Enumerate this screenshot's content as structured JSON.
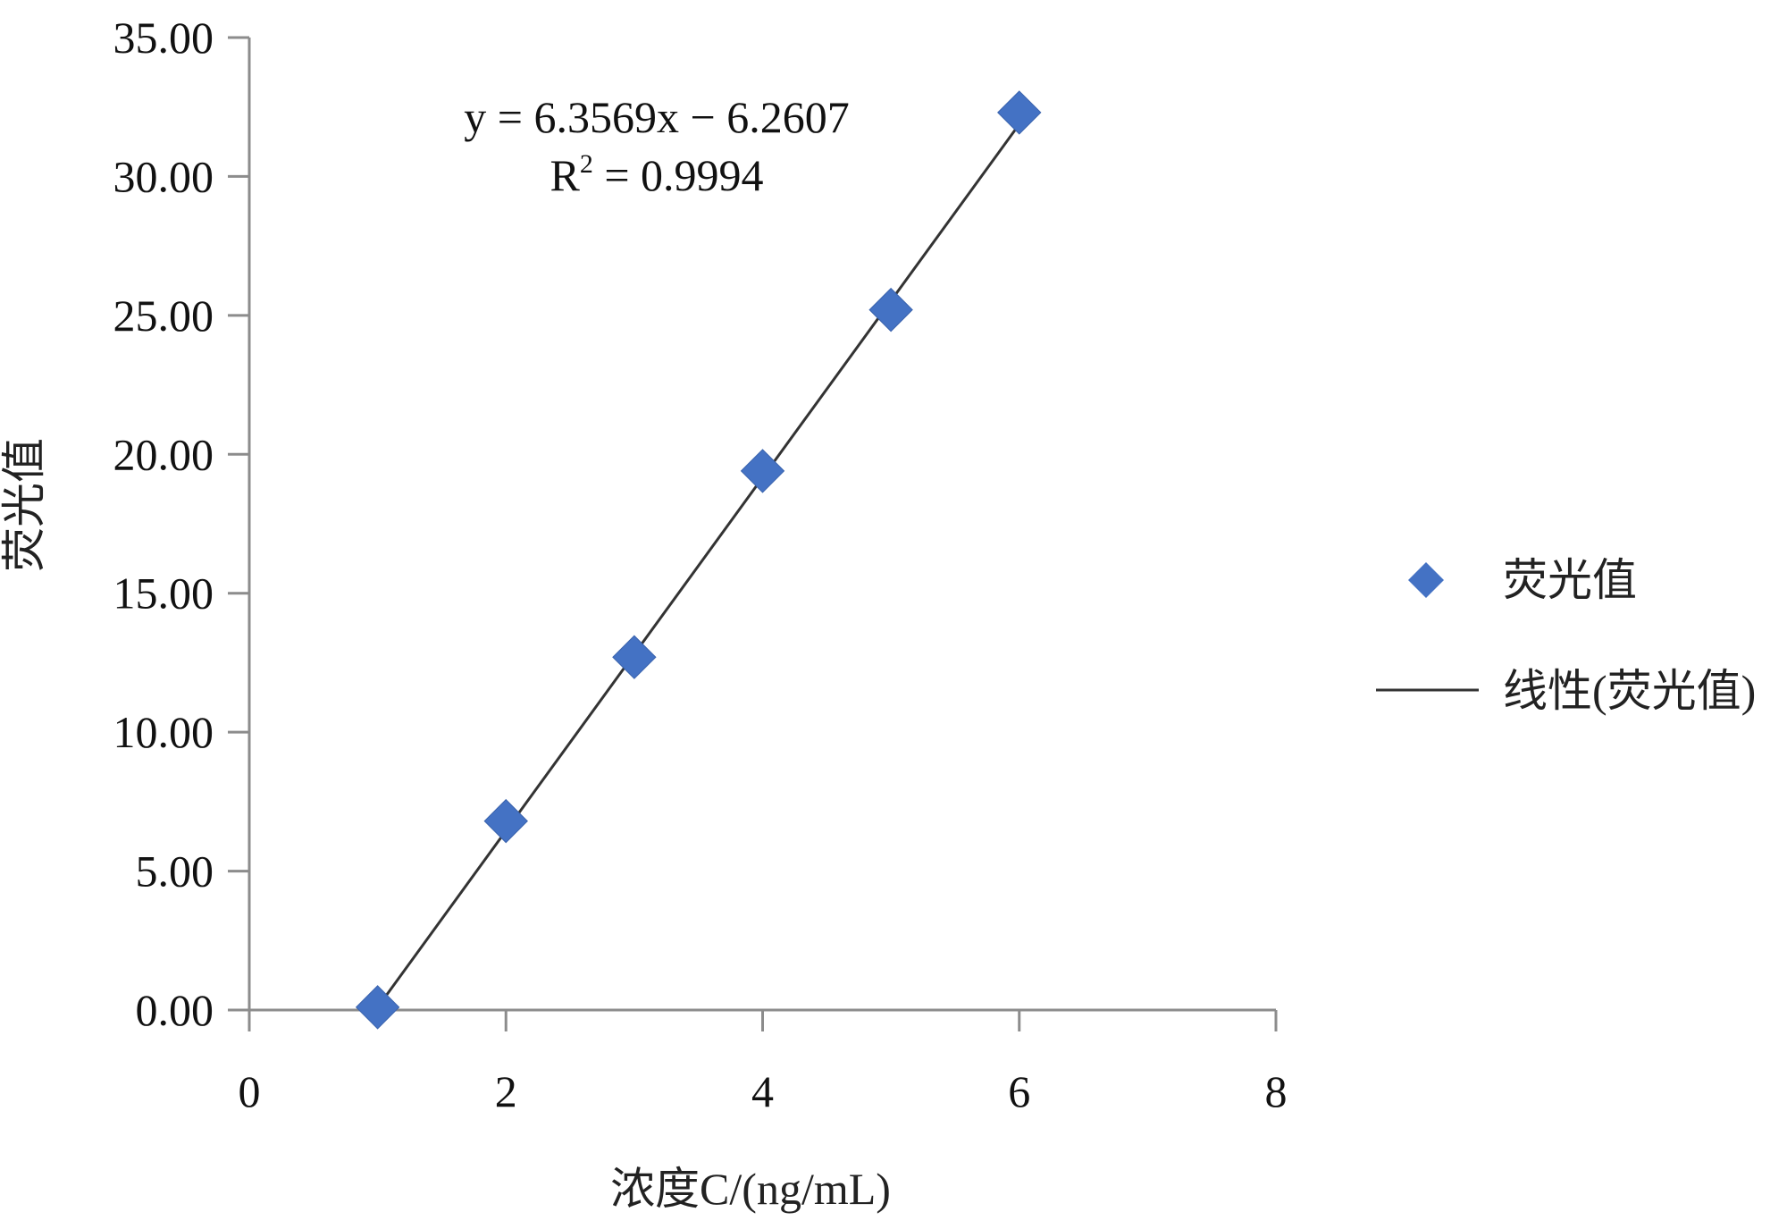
{
  "chart_data": {
    "type": "scatter",
    "xlabel": "浓度C/(ng/mL)",
    "ylabel": "荧光值",
    "xlim": [
      0,
      8
    ],
    "ylim": [
      0,
      35
    ],
    "x_ticks": [
      "0",
      "2",
      "4",
      "6",
      "8"
    ],
    "y_ticks": [
      "0.00",
      "5.00",
      "10.00",
      "15.00",
      "20.00",
      "25.00",
      "30.00",
      "35.00"
    ],
    "grid": false,
    "legend_position": "right",
    "series": [
      {
        "name": "荧光值",
        "marker": "diamond",
        "color": "#4472c4",
        "x": [
          1,
          2,
          3,
          4,
          5,
          6
        ],
        "y": [
          0.1,
          6.8,
          12.7,
          19.4,
          25.2,
          32.3
        ]
      }
    ],
    "trendline": {
      "name": "线性(荧光值)",
      "color": "#333333",
      "slope": 6.3569,
      "intercept": -6.2607,
      "x_range": [
        1,
        6
      ],
      "equation": "y = 6.3569x − 6.2607",
      "r2_label": "R",
      "r2_sup": "2",
      "r2_value": " = 0.9994"
    }
  }
}
